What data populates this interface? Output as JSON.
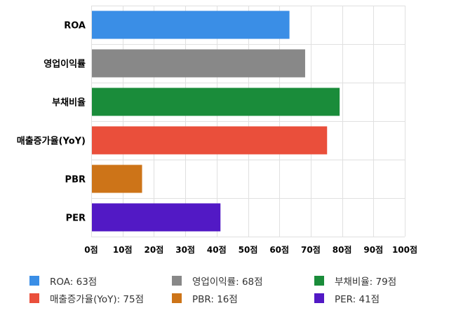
{
  "chart_data": {
    "type": "bar",
    "orientation": "horizontal",
    "categories": [
      "ROA",
      "영업이익률",
      "부채비율",
      "매출증가율(YoY)",
      "PBR",
      "PER"
    ],
    "values": [
      63,
      68,
      79,
      75,
      16,
      41
    ],
    "colors": [
      "#3a8ee6",
      "#888888",
      "#1a8c3a",
      "#ea4f3b",
      "#cd7418",
      "#5219c5"
    ],
    "xlim": [
      0,
      100
    ],
    "xticks": [
      0,
      10,
      20,
      30,
      40,
      50,
      60,
      70,
      80,
      90,
      100
    ],
    "tick_suffix": "점",
    "grid": true,
    "legend_position": "bottom",
    "legend": [
      {
        "label": "ROA: 63점",
        "color": "#3a8ee6"
      },
      {
        "label": "영업이익률: 68점",
        "color": "#888888"
      },
      {
        "label": "부채비율: 79점",
        "color": "#1a8c3a"
      },
      {
        "label": "매출증가율(YoY): 75점",
        "color": "#ea4f3b"
      },
      {
        "label": "PBR: 16점",
        "color": "#cd7418"
      },
      {
        "label": "PER: 41점",
        "color": "#5219c5"
      }
    ]
  }
}
